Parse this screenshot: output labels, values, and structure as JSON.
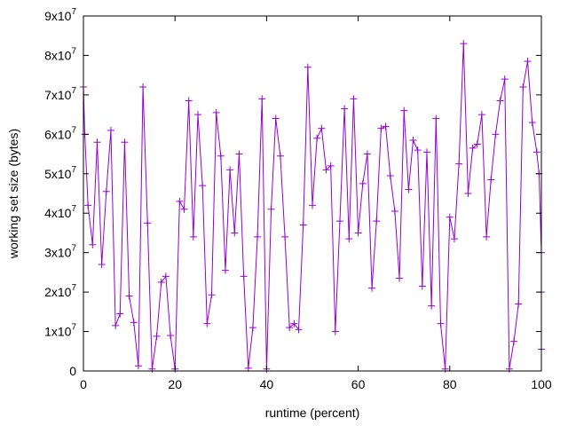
{
  "chart_data": {
    "type": "line",
    "title": "",
    "xlabel": "runtime (percent)",
    "ylabel": "working set size (bytes)",
    "xlim": [
      0,
      100
    ],
    "ylim": [
      0,
      90000000
    ],
    "x_ticks": [
      {
        "value": 0,
        "label": "0"
      },
      {
        "value": 20,
        "label": "20"
      },
      {
        "value": 40,
        "label": "40"
      },
      {
        "value": 60,
        "label": "60"
      },
      {
        "value": 80,
        "label": "80"
      },
      {
        "value": 100,
        "label": "100"
      }
    ],
    "y_ticks": [
      {
        "value": 0,
        "mantissa": "0",
        "exponent": ""
      },
      {
        "value": 10000000,
        "mantissa": "1x10",
        "exponent": "7"
      },
      {
        "value": 20000000,
        "mantissa": "2x10",
        "exponent": "7"
      },
      {
        "value": 30000000,
        "mantissa": "3x10",
        "exponent": "7"
      },
      {
        "value": 40000000,
        "mantissa": "4x10",
        "exponent": "7"
      },
      {
        "value": 50000000,
        "mantissa": "5x10",
        "exponent": "7"
      },
      {
        "value": 60000000,
        "mantissa": "6x10",
        "exponent": "7"
      },
      {
        "value": 70000000,
        "mantissa": "7x10",
        "exponent": "7"
      },
      {
        "value": 80000000,
        "mantissa": "8x10",
        "exponent": "7"
      },
      {
        "value": 90000000,
        "mantissa": "9x10",
        "exponent": "7"
      }
    ],
    "grid": false,
    "legend": "none",
    "series": [
      {
        "color": "#9400d3",
        "marker": "plus",
        "x": [
          0,
          0.3,
          1,
          2,
          3,
          4,
          5,
          6,
          7,
          8,
          9,
          10,
          11,
          12,
          13,
          14,
          15,
          16,
          17,
          18,
          19,
          20,
          21,
          22,
          23,
          24,
          25,
          26,
          27,
          28,
          29,
          30,
          31,
          32,
          33,
          34,
          35,
          36,
          37,
          38,
          39,
          40,
          41,
          42,
          43,
          44,
          45,
          46,
          47,
          48,
          49,
          50,
          51,
          52,
          53,
          54,
          55,
          56,
          57,
          58,
          59,
          60,
          61,
          62,
          63,
          64,
          65,
          66,
          67,
          68,
          69,
          70,
          71,
          72,
          73,
          74,
          75,
          76,
          77,
          78,
          79,
          80,
          81,
          82,
          83,
          84,
          85,
          86,
          87,
          88,
          89,
          90,
          91,
          92,
          93,
          94,
          95,
          96,
          97,
          98,
          99,
          99.5,
          100,
          100,
          100
        ],
        "y": [
          72000000,
          60000000,
          42000000,
          32000000,
          58000000,
          27000000,
          45500000,
          61000000,
          11500000,
          14500000,
          58000000,
          19000000,
          12300000,
          1300000,
          72000000,
          37500000,
          500000,
          8800000,
          22500000,
          24000000,
          9000000,
          500000,
          43000000,
          41000000,
          68500000,
          34000000,
          65000000,
          47000000,
          12000000,
          19300000,
          65500000,
          54500000,
          25500000,
          51000000,
          35000000,
          55000000,
          24000000,
          700000,
          11000000,
          34000000,
          69000000,
          500000,
          41000000,
          64000000,
          54500000,
          34000000,
          11000000,
          12000000,
          10500000,
          37000000,
          77000000,
          42000000,
          59000000,
          61500000,
          51000000,
          52000000,
          10000000,
          38000000,
          66500000,
          33500000,
          69000000,
          35000000,
          47500000,
          55000000,
          21000000,
          38000000,
          61500000,
          62000000,
          49500000,
          40500000,
          23500000,
          66000000,
          46000000,
          58500000,
          56000000,
          21500000,
          55500000,
          16500000,
          64000000,
          12000000,
          500000,
          39000000,
          33500000,
          52500000,
          83000000,
          45000000,
          56500000,
          57500000,
          65000000,
          34000000,
          48500000,
          60000000,
          68500000,
          74000000,
          500000,
          7500000,
          17000000,
          72000000,
          78500000,
          63000000,
          55500000,
          50000000,
          30000000,
          20000000,
          5500000
        ]
      }
    ]
  }
}
